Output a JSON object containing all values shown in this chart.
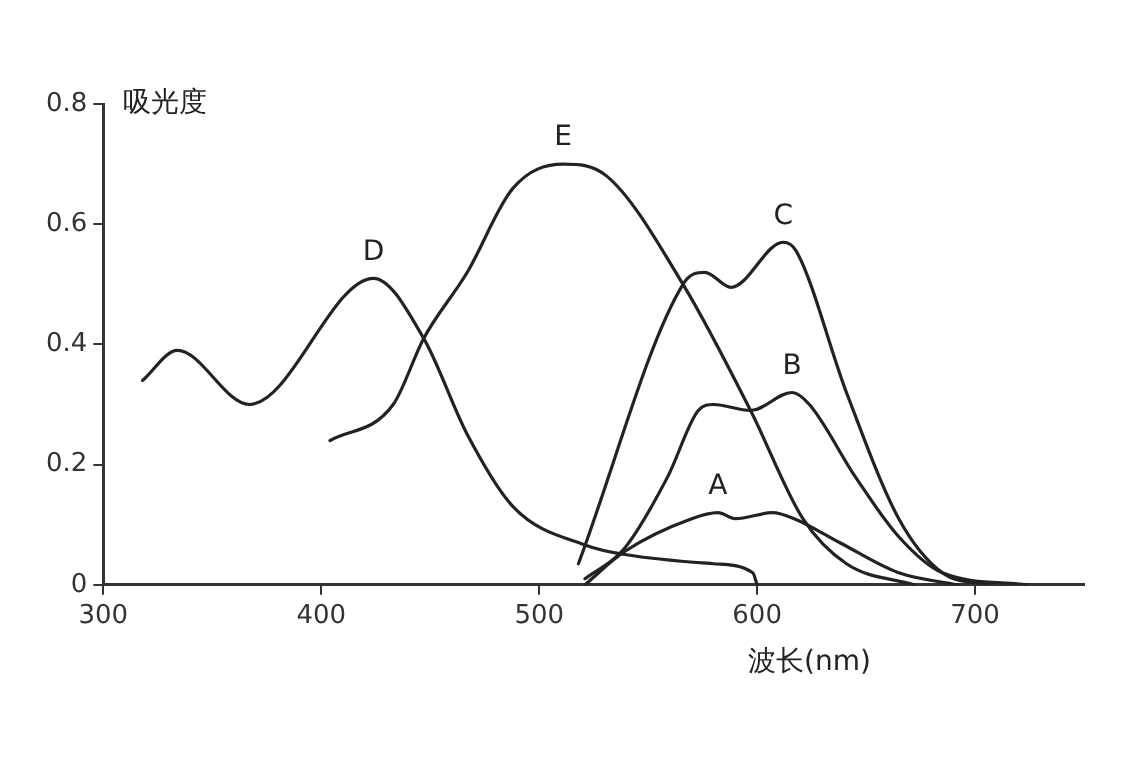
{
  "chart_data": {
    "type": "line",
    "xlabel": "波长(nm)",
    "ylabel": "吸光度",
    "xlim": [
      300,
      750
    ],
    "ylim": [
      0,
      0.8
    ],
    "xticks": [
      300,
      400,
      500,
      600,
      700
    ],
    "yticks": [
      0,
      0.2,
      0.4,
      0.6,
      0.8
    ],
    "grid": false,
    "legend": false,
    "marker": "none",
    "line_style": "solid",
    "series": [
      {
        "name": "A",
        "color": "#222222",
        "x": [
          521,
          539,
          570,
          582,
          590,
          607,
          617,
          638,
          665,
          692
        ],
        "values": [
          0,
          0.055,
          0.11,
          0.12,
          0.11,
          0.12,
          0.11,
          0.07,
          0.02,
          0
        ]
      },
      {
        "name": "B",
        "color": "#222222",
        "x": [
          521,
          539,
          559,
          573,
          580,
          597,
          616,
          624,
          645,
          665,
          685,
          724
        ],
        "values": [
          0.01,
          0.06,
          0.18,
          0.29,
          0.3,
          0.29,
          0.32,
          0.3,
          0.18,
          0.08,
          0.02,
          0
        ]
      },
      {
        "name": "C",
        "color": "#222222",
        "x": [
          518,
          566,
          576,
          588,
          612,
          618,
          641,
          665,
          685,
          706
        ],
        "values": [
          0.035,
          0.5,
          0.52,
          0.495,
          0.57,
          0.555,
          0.32,
          0.11,
          0.02,
          0
        ]
      },
      {
        "name": "D",
        "color": "#222222",
        "x": [
          318,
          334,
          367,
          424,
          447,
          467,
          488,
          522,
          540,
          580,
          598,
          600
        ],
        "values": [
          0.34,
          0.39,
          0.3,
          0.51,
          0.41,
          0.25,
          0.13,
          0.065,
          0.05,
          0.035,
          0.02,
          0
        ]
      },
      {
        "name": "E",
        "color": "#222222",
        "x": [
          404,
          433,
          447,
          467,
          488,
          511,
          531,
          566,
          597,
          621,
          641,
          672
        ],
        "values": [
          0.24,
          0.3,
          0.41,
          0.52,
          0.66,
          0.7,
          0.68,
          0.5,
          0.29,
          0.11,
          0.035,
          0
        ]
      }
    ]
  }
}
